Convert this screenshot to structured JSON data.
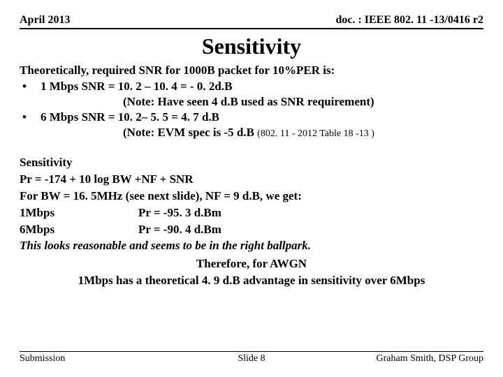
{
  "header": {
    "date": "April 2013",
    "docref": "doc. : IEEE 802. 11 -13/0416 r2"
  },
  "title": "Sensitivity",
  "intro": "Theoretically, required SNR for 1000B packet for 10%PER is:",
  "bullets": [
    {
      "main": "1 Mbps SNR = 10. 2 – 10. 4 = - 0. 2d.B",
      "note": "(Note: Have seen 4 d.B used as SNR requirement)"
    },
    {
      "main": "6 Mbps SNR = 10. 2– 5. 5 = 4. 7 d.B",
      "note_prefix": "(Note: EVM spec is -5 d.B ",
      "note_small": "(802. 11 - 2012 Table 18 -13 )"
    }
  ],
  "body": {
    "l1": "Sensitivity",
    "l2": "Pr = -174 + 10 log BW +NF + SNR",
    "l3": "For BW = 16. 5MHz (see next slide), NF = 9 d.B, we get:",
    "r1_rate": "1Mbps",
    "r1_val": "Pr = -95. 3 d.Bm",
    "r2_rate": "6Mbps",
    "r2_val": "Pr = -90. 4 d.Bm",
    "italic": "This looks reasonable and seems to be in the right ballpark.",
    "c1": "Therefore, for AWGN",
    "c2": "1Mbps has a  theoretical 4. 9 d.B advantage in sensitivity over 6Mbps"
  },
  "footer": {
    "left": "Submission",
    "center": "Slide 8",
    "right": "Graham Smith, DSP Group"
  }
}
